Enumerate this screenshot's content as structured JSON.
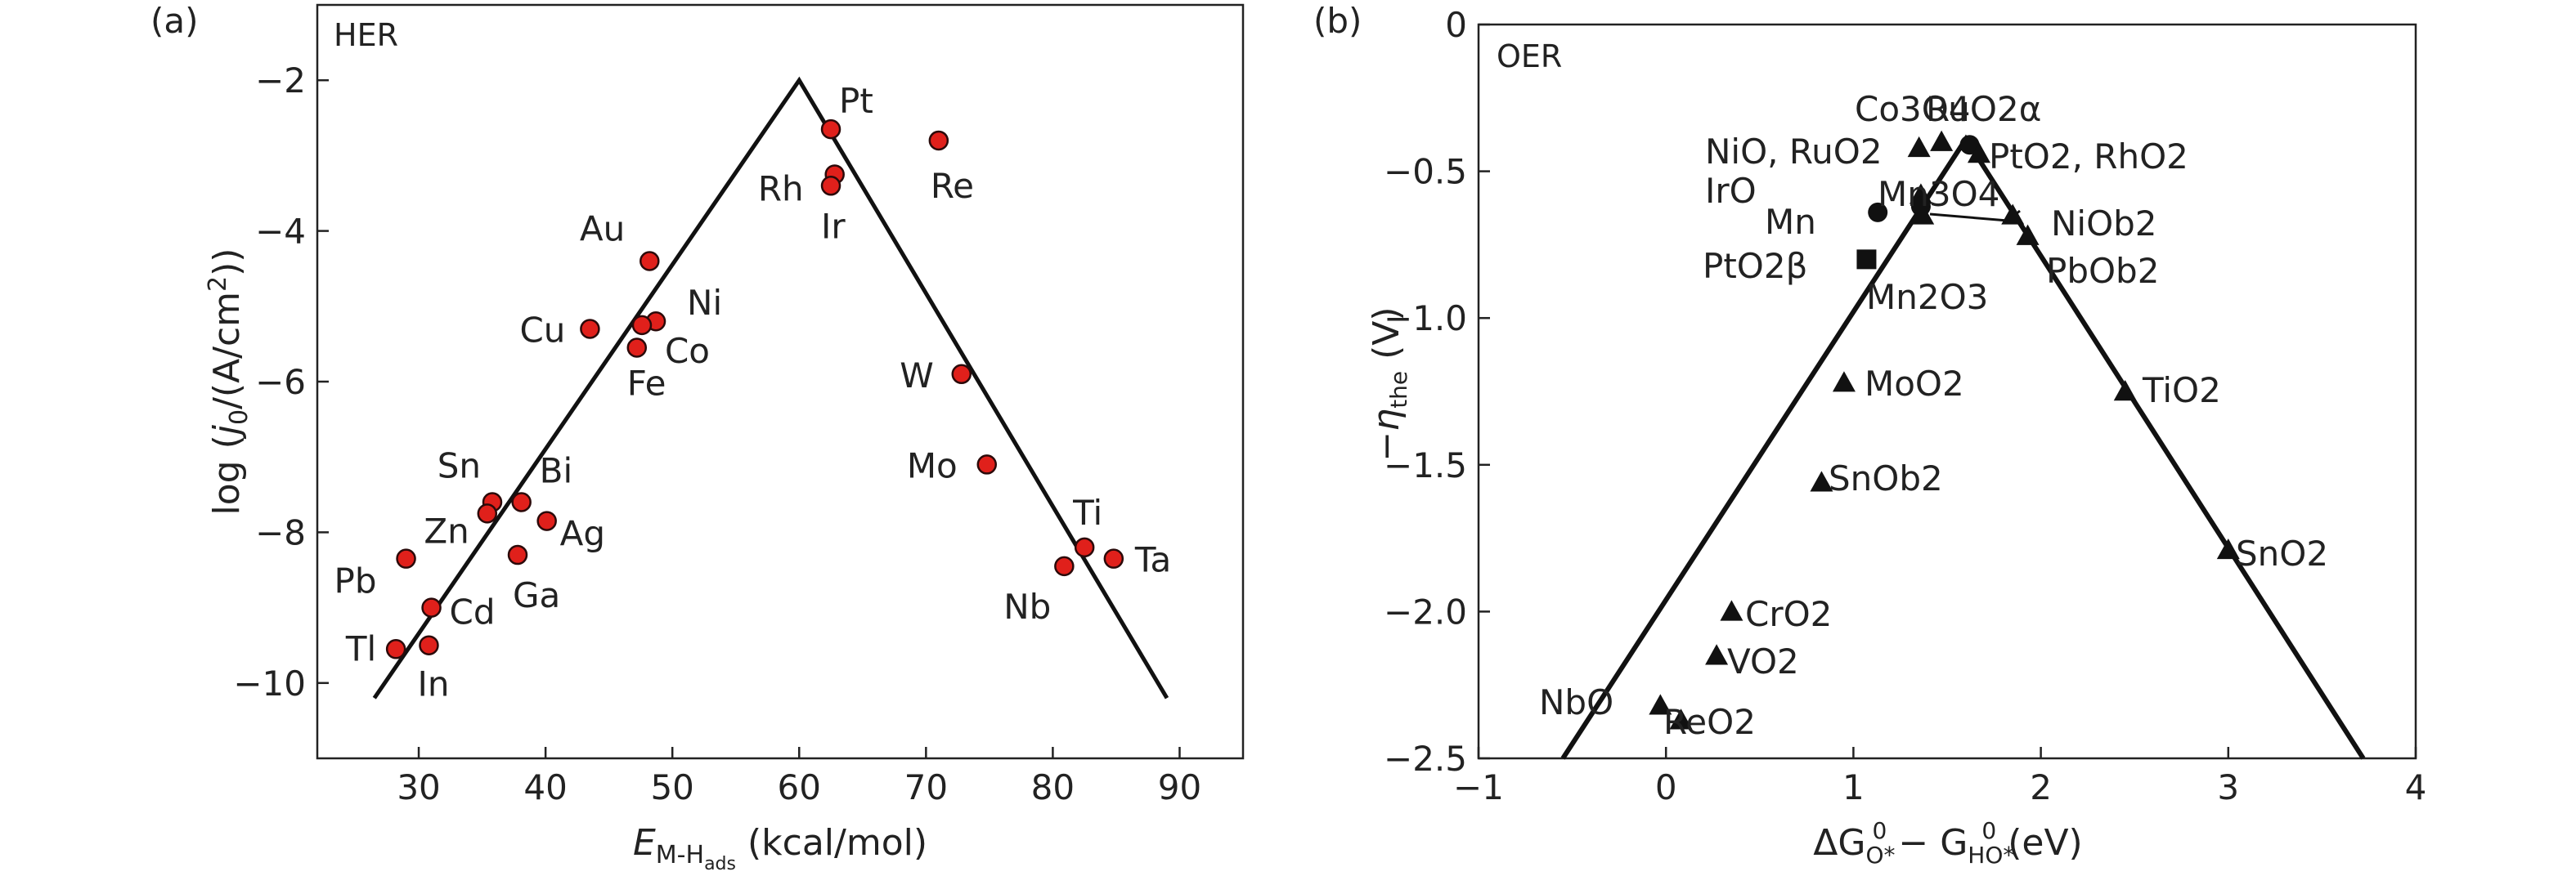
{
  "chart_data": [
    {
      "panel": "(a)",
      "type": "scatter",
      "tag": "HER",
      "xlabel_main": "E",
      "xlabel_sub": "M-H",
      "xlabel_subsub": "ads",
      "xlabel_unit": " (kcal/mol)",
      "ylabel_pre": "log (",
      "ylabel_italic": "j",
      "ylabel_sub": "0",
      "ylabel_post": "/(A/cm",
      "ylabel_sup": "2",
      "ylabel_end": "))",
      "xlim": [
        22,
        95
      ],
      "ylim": [
        -11,
        -1
      ],
      "xticks": [
        30,
        40,
        50,
        60,
        70,
        80,
        90
      ],
      "yticks": [
        -10,
        -8,
        -6,
        -4,
        -2
      ],
      "volcano": [
        [
          26.5,
          -10.2
        ],
        [
          60,
          -2
        ],
        [
          89,
          -10.2
        ]
      ],
      "points": [
        {
          "x": 62.5,
          "y": -2.65,
          "label": "Pt"
        },
        {
          "x": 62.8,
          "y": -3.25,
          "label": "Rh"
        },
        {
          "x": 62.5,
          "y": -3.4,
          "label": "Ir"
        },
        {
          "x": 71,
          "y": -2.8,
          "label": "Re"
        },
        {
          "x": 48.2,
          "y": -4.4,
          "label": "Au"
        },
        {
          "x": 43.5,
          "y": -5.3,
          "label": "Cu"
        },
        {
          "x": 48.7,
          "y": -5.2,
          "label": "Ni"
        },
        {
          "x": 47.6,
          "y": -5.25,
          "label": "Co"
        },
        {
          "x": 47.2,
          "y": -5.55,
          "label": "Fe"
        },
        {
          "x": 72.8,
          "y": -5.9,
          "label": "W"
        },
        {
          "x": 74.8,
          "y": -7.1,
          "label": "Mo"
        },
        {
          "x": 35.8,
          "y": -7.6,
          "label": "Sn"
        },
        {
          "x": 35.4,
          "y": -7.75,
          "label": "Zn"
        },
        {
          "x": 38.1,
          "y": -7.6,
          "label": "Bi"
        },
        {
          "x": 40.1,
          "y": -7.85,
          "label": "Ag"
        },
        {
          "x": 29.0,
          "y": -8.35,
          "label": "Pb"
        },
        {
          "x": 37.8,
          "y": -8.3,
          "label": "Ga"
        },
        {
          "x": 31.0,
          "y": -9.0,
          "label": "Cd"
        },
        {
          "x": 28.2,
          "y": -9.55,
          "label": "Tl"
        },
        {
          "x": 30.8,
          "y": -9.5,
          "label": "In"
        },
        {
          "x": 82.5,
          "y": -8.2,
          "label": "Ti"
        },
        {
          "x": 84.8,
          "y": -8.35,
          "label": "Ta"
        },
        {
          "x": 80.9,
          "y": -8.45,
          "label": "Nb"
        }
      ]
    },
    {
      "panel": "(b)",
      "type": "scatter",
      "tag": "OER",
      "xlabel_delta": "ΔG",
      "xlabel_s1": "O*",
      "xlabel_sup1": "0",
      "xlabel_minus": " − G",
      "xlabel_s2": "HO*",
      "xlabel_sup2": "0",
      "xlabel_unit": " (eV)",
      "ylabel_minus": "−",
      "ylabel_eta": "η",
      "ylabel_sub": "the",
      "ylabel_unit": " (V)",
      "xlim": [
        -1,
        4
      ],
      "ylim": [
        -2.5,
        0
      ],
      "xticks": [
        -1,
        0,
        1,
        2,
        3,
        4
      ],
      "yticks": [
        0,
        -0.5,
        -1.0,
        -1.5,
        -2.0,
        -2.5
      ],
      "ytick_labels": [
        "0",
        "−0.5",
        "−1.0",
        "−1.5",
        "−2.0",
        "−2.5"
      ],
      "xtick_labels": [
        "−1",
        "0",
        "1",
        "2",
        "3",
        "4"
      ],
      "volcano": [
        [
          -0.55,
          -2.5
        ],
        [
          1.6,
          -0.39
        ],
        [
          3.72,
          -2.5
        ]
      ],
      "points": [
        {
          "x": 1.35,
          "y": -0.42,
          "marker": "triangle",
          "label": "Co3O4"
        },
        {
          "x": 1.47,
          "y": -0.4,
          "marker": "triangle",
          "label": ""
        },
        {
          "x": 1.62,
          "y": -0.41,
          "marker": "circle",
          "label": "RuO2α"
        },
        {
          "x": 1.67,
          "y": -0.44,
          "marker": "triangle",
          "label": "PtO2, RhO2"
        },
        {
          "x": 1.36,
          "y": -0.58,
          "marker": "triangle",
          "label": "Mn3O4"
        },
        {
          "x": 1.36,
          "y": -0.62,
          "marker": "circle",
          "label": ""
        },
        {
          "x": 1.13,
          "y": -0.64,
          "marker": "circle",
          "label": "Mn"
        },
        {
          "x": 1.37,
          "y": -0.65,
          "marker": "triangle",
          "label": ""
        },
        {
          "x": 1.85,
          "y": -0.65,
          "marker": "triangle",
          "label": "NiOb2"
        },
        {
          "x": 1.07,
          "y": -0.8,
          "marker": "square",
          "label": "PtO2β"
        },
        {
          "x": 1.93,
          "y": -0.72,
          "marker": "triangle",
          "label": "PbOb2"
        },
        {
          "x": 0.95,
          "y": -1.22,
          "marker": "triangle",
          "label": "MoO2"
        },
        {
          "x": 2.45,
          "y": -1.25,
          "marker": "triangle",
          "label": "TiO2"
        },
        {
          "x": 0.83,
          "y": -1.56,
          "marker": "triangle",
          "label": "SnOb2"
        },
        {
          "x": 3.0,
          "y": -1.79,
          "marker": "triangle",
          "label": "SnO2"
        },
        {
          "x": 0.35,
          "y": -2.0,
          "marker": "triangle",
          "label": "CrO2"
        },
        {
          "x": 0.27,
          "y": -2.15,
          "marker": "triangle",
          "label": "VO2"
        },
        {
          "x": -0.03,
          "y": -2.32,
          "marker": "triangle",
          "label": "NbO"
        },
        {
          "x": 0.08,
          "y": -2.37,
          "marker": "triangle",
          "label": "ReO2"
        }
      ],
      "text_labels": {
        "co3o4": "Co3O4",
        "ruo2a": "RuO2α",
        "nio_ruo2": "NiO, RuO2",
        "pto2_rho2": "PtO2, RhO2",
        "iro": "IrO",
        "mn3o4": "Mn3O4",
        "niob2": "NiOb2",
        "mn": "Mn",
        "pto2b": "PtO2β",
        "pbob2": "PbOb2",
        "mn2o3": "Mn2O3",
        "moo2": "MoO2",
        "tio2": "TiO2",
        "snob2": "SnOb2",
        "sno2": "SnO2",
        "cro2": "CrO2",
        "vo2": "VO2",
        "nbo": "NbO",
        "reo2": "ReO2"
      }
    }
  ],
  "colors": {
    "point_fill_a": "#e0201b",
    "point_edge_a": "#2b0a0a",
    "marker_b": "#111111",
    "line": "#111111",
    "axis": "#222222"
  }
}
